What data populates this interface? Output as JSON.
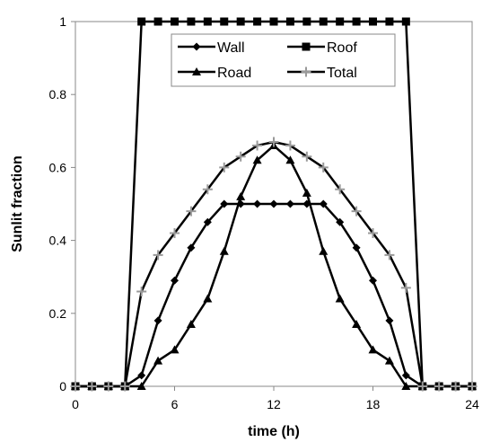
{
  "chart_data": {
    "type": "line",
    "xlabel": "time (h)",
    "ylabel": "Sunlit fraction",
    "xlim": [
      0,
      24
    ],
    "ylim": [
      0,
      1
    ],
    "xticks": [
      "0",
      "6",
      "12",
      "18",
      "24"
    ],
    "yticks": [
      "0",
      "0.2",
      "0.4",
      "0.6",
      "0.8",
      "1"
    ],
    "grid": false,
    "legend": "top-center",
    "x": [
      0,
      1,
      2,
      3,
      4,
      5,
      6,
      7,
      8,
      9,
      10,
      11,
      12,
      13,
      14,
      15,
      16,
      17,
      18,
      19,
      20,
      21,
      22,
      23,
      24
    ],
    "series": [
      {
        "name": "Wall",
        "marker": "diamond",
        "values": [
          0,
          0,
          0,
          0,
          0.03,
          0.18,
          0.29,
          0.38,
          0.45,
          0.5,
          0.5,
          0.5,
          0.5,
          0.5,
          0.5,
          0.5,
          0.45,
          0.38,
          0.29,
          0.18,
          0.03,
          0,
          0,
          0,
          0
        ]
      },
      {
        "name": "Roof",
        "marker": "square",
        "values": [
          0,
          0,
          0,
          0,
          1,
          1,
          1,
          1,
          1,
          1,
          1,
          1,
          1,
          1,
          1,
          1,
          1,
          1,
          1,
          1,
          1,
          0,
          0,
          0,
          0
        ]
      },
      {
        "name": "Road",
        "marker": "triangle",
        "values": [
          0,
          0,
          0,
          0,
          0,
          0.07,
          0.1,
          0.17,
          0.24,
          0.37,
          0.52,
          0.62,
          0.66,
          0.62,
          0.53,
          0.37,
          0.24,
          0.17,
          0.1,
          0.07,
          0,
          0,
          0,
          0,
          0
        ]
      },
      {
        "name": "Total",
        "marker": "plus",
        "values": [
          0,
          0,
          0,
          0,
          0.26,
          0.36,
          0.42,
          0.48,
          0.54,
          0.6,
          0.63,
          0.66,
          0.67,
          0.66,
          0.63,
          0.6,
          0.54,
          0.48,
          0.42,
          0.36,
          0.27,
          0,
          0,
          0,
          0
        ]
      }
    ]
  }
}
